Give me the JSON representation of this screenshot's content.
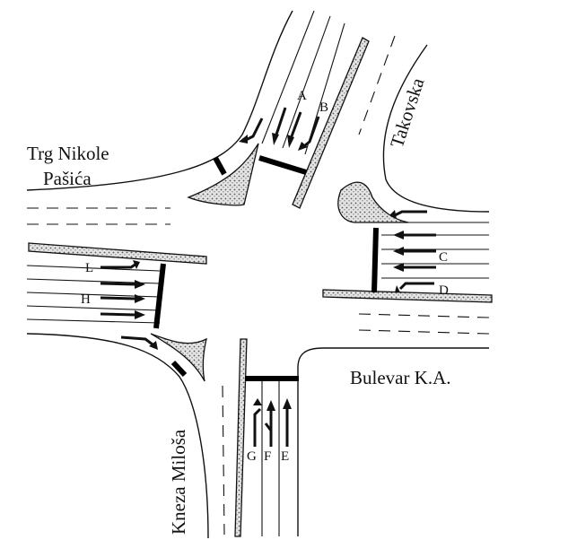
{
  "streets": {
    "trg_line1": "Trg Nikole",
    "trg_line2": "Pašića",
    "takovska": "Takovska",
    "bulevar": "Bulevar K.A.",
    "kneza": "Kneza Miloša"
  },
  "lanes": {
    "a": "A",
    "b": "B",
    "c": "C",
    "d": "D",
    "e": "E",
    "f": "F",
    "g": "G",
    "h": "H",
    "l": "L"
  },
  "colors": {
    "island_fill": "#d9d9d9",
    "line": "#111111",
    "stop_bar": "#000000"
  }
}
